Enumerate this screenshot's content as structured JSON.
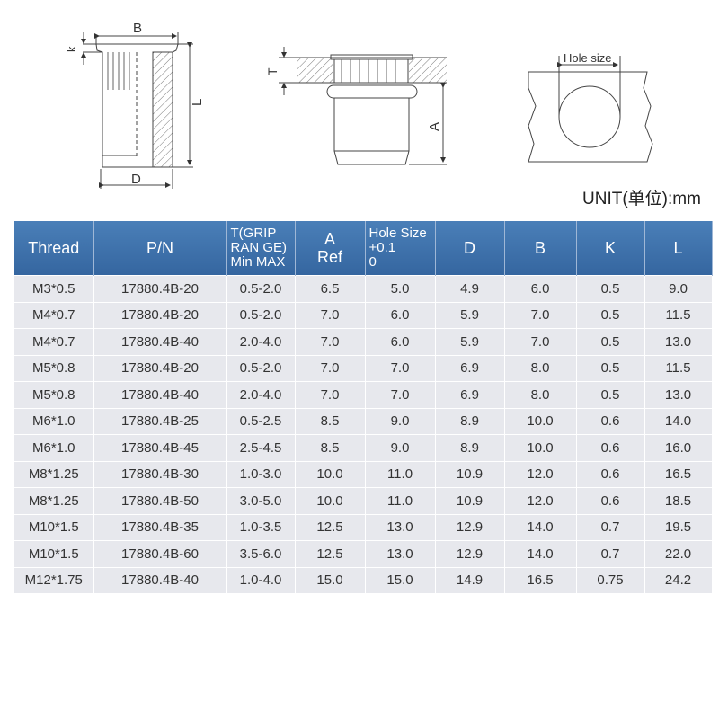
{
  "diagrams": {
    "nut_side": {
      "label_b": "B",
      "label_k": "k",
      "label_l": "L",
      "label_d": "D"
    },
    "installed": {
      "label_t": "T",
      "label_a": "A"
    },
    "hole": {
      "label_hole": "Hole size"
    }
  },
  "unit": "UNIT(单位):mm",
  "table": {
    "headers": [
      "Thread",
      "P/N",
      "T(GRIP RAN GE) Min MAX",
      "A Ref",
      "Hole Size +0.1 0",
      "D",
      "B",
      "K",
      "L"
    ],
    "header_lines": {
      "t": [
        "T(GRIP",
        "RAN GE)",
        "Min MAX"
      ],
      "a": [
        "A",
        "Ref"
      ],
      "hole": [
        "Hole Size",
        "+0.1",
        "0"
      ]
    },
    "rows": [
      [
        "M3*0.5",
        "17880.4B-20",
        "0.5-2.0",
        "6.5",
        "5.0",
        "4.9",
        "6.0",
        "0.5",
        "9.0"
      ],
      [
        "M4*0.7",
        "17880.4B-20",
        "0.5-2.0",
        "7.0",
        "6.0",
        "5.9",
        "7.0",
        "0.5",
        "11.5"
      ],
      [
        "M4*0.7",
        "17880.4B-40",
        "2.0-4.0",
        "7.0",
        "6.0",
        "5.9",
        "7.0",
        "0.5",
        "13.0"
      ],
      [
        "M5*0.8",
        "17880.4B-20",
        "0.5-2.0",
        "7.0",
        "7.0",
        "6.9",
        "8.0",
        "0.5",
        "11.5"
      ],
      [
        "M5*0.8",
        "17880.4B-40",
        "2.0-4.0",
        "7.0",
        "7.0",
        "6.9",
        "8.0",
        "0.5",
        "13.0"
      ],
      [
        "M6*1.0",
        "17880.4B-25",
        "0.5-2.5",
        "8.5",
        "9.0",
        "8.9",
        "10.0",
        "0.6",
        "14.0"
      ],
      [
        "M6*1.0",
        "17880.4B-45",
        "2.5-4.5",
        "8.5",
        "9.0",
        "8.9",
        "10.0",
        "0.6",
        "16.0"
      ],
      [
        "M8*1.25",
        "17880.4B-30",
        "1.0-3.0",
        "10.0",
        "11.0",
        "10.9",
        "12.0",
        "0.6",
        "16.5"
      ],
      [
        "M8*1.25",
        "17880.4B-50",
        "3.0-5.0",
        "10.0",
        "11.0",
        "10.9",
        "12.0",
        "0.6",
        "18.5"
      ],
      [
        "M10*1.5",
        "17880.4B-35",
        "1.0-3.5",
        "12.5",
        "13.0",
        "12.9",
        "14.0",
        "0.7",
        "19.5"
      ],
      [
        "M10*1.5",
        "17880.4B-60",
        "3.5-6.0",
        "12.5",
        "13.0",
        "12.9",
        "14.0",
        "0.7",
        "22.0"
      ],
      [
        "M12*1.75",
        "17880.4B-40",
        "1.0-4.0",
        "15.0",
        "15.0",
        "14.9",
        "16.5",
        "0.75",
        "24.2"
      ]
    ]
  },
  "colors": {
    "header_bg": "#3a6da8",
    "row_bg": "#e7e8ed"
  }
}
